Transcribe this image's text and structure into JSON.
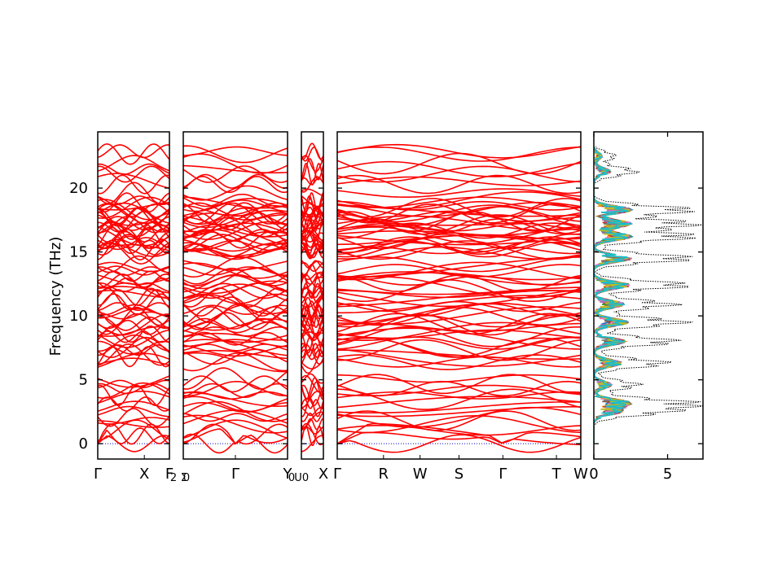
{
  "chart_data": {
    "type": "line",
    "subtype": "phonon band structure with projected density of states",
    "ylabel": "Frequency (THz)",
    "ylim": [
      -1.2,
      24.4
    ],
    "yticks": [
      0,
      5,
      10,
      15,
      20
    ],
    "grid": false,
    "legend": "none",
    "colors": {
      "bands": "#ff0000",
      "zero_line": "#0000cc",
      "total_dos": "#000000",
      "axes": "#000000"
    },
    "band_segments": [
      {
        "labels": [
          "Γ",
          "X",
          "F"
        ],
        "label_positions": [
          0,
          0.65,
          1.0
        ]
      },
      {
        "labels": [
          "Γ",
          "Y"
        ],
        "label_positions": [
          0.5,
          1.0
        ]
      },
      {
        "labels": [
          "X"
        ],
        "label_positions": [
          1.0
        ]
      },
      {
        "labels": [
          "Γ",
          "R",
          "W",
          "S",
          "Γ",
          "T",
          "W"
        ],
        "label_positions": [
          0,
          0.19,
          0.34,
          0.5,
          0.68,
          0.9,
          1.0
        ]
      }
    ],
    "band_subscript_labels": [
      {
        "text": "2",
        "segment": 0
      },
      {
        "text": "Σ",
        "segment": 1
      },
      {
        "text": "0",
        "segment": 1
      },
      {
        "text": "0",
        "segment": 1
      },
      {
        "text": "U",
        "segment": 2
      },
      {
        "text": "0",
        "segment": 2
      }
    ],
    "band_series_note": "many phonon branches, frequencies ranging from 0 to about 23 THz; acoustic branches reach 0 at Γ",
    "band_clusters_thz": [
      {
        "range": [
          0,
          5.2
        ],
        "count": 16
      },
      {
        "range": [
          6.2,
          14.2
        ],
        "count": 36
      },
      {
        "range": [
          14.8,
          19.0
        ],
        "count": 30
      },
      {
        "range": [
          19.5,
          23.2
        ],
        "count": 8
      }
    ],
    "dos": {
      "xlim": [
        0,
        7.4
      ],
      "xticks": [
        0,
        5
      ],
      "total_peaks": [
        {
          "freq": 2.5,
          "value": 5.0
        },
        {
          "freq": 3.2,
          "value": 7.0
        },
        {
          "freq": 4.6,
          "value": 3.4
        },
        {
          "freq": 6.3,
          "value": 5.5
        },
        {
          "freq": 8.0,
          "value": 6.2
        },
        {
          "freq": 9.5,
          "value": 6.8
        },
        {
          "freq": 10.9,
          "value": 6.0
        },
        {
          "freq": 12.4,
          "value": 7.1
        },
        {
          "freq": 14.5,
          "value": 7.4
        },
        {
          "freq": 16.2,
          "value": 7.4
        },
        {
          "freq": 17.2,
          "value": 7.4
        },
        {
          "freq": 18.3,
          "value": 7.4
        },
        {
          "freq": 21.3,
          "value": 3.2
        },
        {
          "freq": 22.5,
          "value": 1.6
        }
      ],
      "projected_series_colors": [
        "#1f77b4",
        "#ff7f0e",
        "#2ca02c",
        "#d62728",
        "#9467bd",
        "#8c564b",
        "#e377c2",
        "#7f7f7f",
        "#bcbd22",
        "#17becf"
      ]
    }
  }
}
